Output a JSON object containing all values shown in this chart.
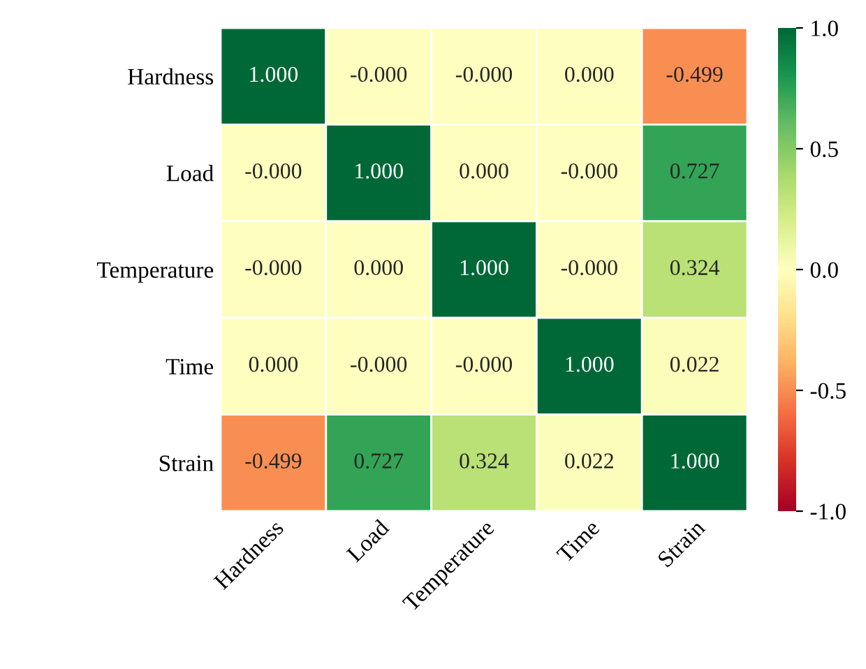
{
  "chart_data": {
    "type": "heatmap",
    "categories": [
      "Hardness",
      "Load",
      "Temperature",
      "Time",
      "Strain"
    ],
    "y_categories": [
      "Hardness",
      "Load",
      "Temperature",
      "Time",
      "Strain"
    ],
    "cells": [
      [
        1.0,
        0.0,
        0.0,
        0.0,
        -0.499
      ],
      [
        0.0,
        1.0,
        0.0,
        0.0,
        0.727
      ],
      [
        0.0,
        0.0,
        1.0,
        0.0,
        0.324
      ],
      [
        0.0,
        0.0,
        0.0,
        1.0,
        0.022
      ],
      [
        -0.499,
        0.727,
        0.324,
        0.022,
        1.0
      ]
    ],
    "cell_labels": [
      [
        "1.000",
        "-0.000",
        "-0.000",
        "0.000",
        "-0.499"
      ],
      [
        "-0.000",
        "1.000",
        "0.000",
        "-0.000",
        "0.727"
      ],
      [
        "-0.000",
        "0.000",
        "1.000",
        "-0.000",
        "0.324"
      ],
      [
        "0.000",
        "-0.000",
        "-0.000",
        "1.000",
        "0.022"
      ],
      [
        "-0.499",
        "0.727",
        "0.324",
        "0.022",
        "1.000"
      ]
    ],
    "clim": [
      -1.0,
      1.0
    ],
    "cticks": [
      {
        "value": -1.0,
        "label": "-1.0"
      },
      {
        "value": -0.5,
        "label": "-0.5"
      },
      {
        "value": 0.0,
        "label": "0.0"
      },
      {
        "value": 0.5,
        "label": "0.5"
      },
      {
        "value": 1.0,
        "label": "1.0"
      }
    ]
  }
}
